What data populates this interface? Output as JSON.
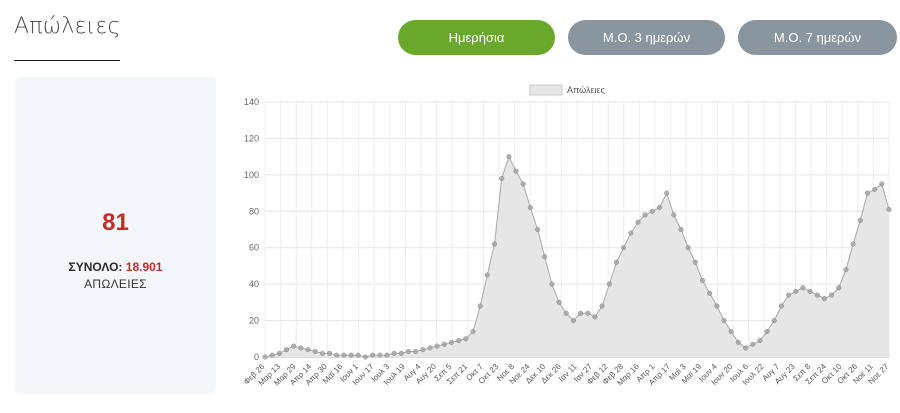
{
  "page": {
    "title": "Απώλειες"
  },
  "tabs": [
    {
      "label": "Ημερήσια",
      "active": true
    },
    {
      "label": "Μ.Ο. 3 ημερών",
      "active": false
    },
    {
      "label": "Μ.Ο. 7 ημερών",
      "active": false
    }
  ],
  "summary": {
    "daily_value": "81",
    "total_label": "ΣΥΝΟΛΟ:",
    "total_value": "18.901",
    "subtitle": "ΑΠΩΛΕΙΕΣ"
  },
  "colors": {
    "active_tab": "#6aa82b",
    "inactive_tab": "#8a969f",
    "value_red": "#c62b26",
    "area_fill": "#e6e6e6",
    "series_points": "#9e9e9e"
  },
  "chart_data": {
    "type": "area",
    "legend": [
      "Απώλειες"
    ],
    "legend_position": "top",
    "ylim": [
      0,
      140
    ],
    "yticks": [
      0,
      20,
      40,
      60,
      80,
      100,
      120,
      140
    ],
    "grid": true,
    "x_ticks": [
      "Φεβ 26",
      "Μαρ 13",
      "Μαρ 29",
      "Απρ 14",
      "Απρ 30",
      "Μαϊ 16",
      "Ιουν 1",
      "Ιουν 17",
      "Ιουλ 3",
      "Ιουλ 19",
      "Αυγ 4",
      "Αυγ 20",
      "Σεπ 5",
      "Σεπ 21",
      "Οκτ 7",
      "Οκτ 23",
      "Νοε 8",
      "Νοε 24",
      "Δεκ 10",
      "Δεκ 26",
      "Ιαν 11",
      "Ιαν 27",
      "Φεβ 12",
      "Φεβ 28",
      "Μαρ 16",
      "Απρ 1",
      "Απρ 17",
      "Μαϊ 3",
      "Μαϊ 19",
      "Ιουν 4",
      "Ιουν 20",
      "Ιουλ 6",
      "Ιουλ 22",
      "Αυγ 7",
      "Αυγ 23",
      "Σεπ 8",
      "Σεπ 24",
      "Οκτ 10",
      "Οκτ 26",
      "Νοε 11",
      "Νοε 27"
    ],
    "series": [
      {
        "name": "Απώλειες",
        "step_days": 4,
        "values": [
          0,
          1,
          2,
          4,
          6,
          5,
          4,
          3,
          2,
          2,
          1,
          1,
          1,
          1,
          0,
          1,
          1,
          1,
          2,
          2,
          3,
          3,
          4,
          5,
          6,
          7,
          8,
          9,
          10,
          14,
          28,
          45,
          62,
          98,
          110,
          102,
          95,
          82,
          70,
          55,
          40,
          30,
          24,
          20,
          24,
          24,
          22,
          28,
          40,
          52,
          60,
          68,
          74,
          78,
          80,
          82,
          90,
          78,
          70,
          60,
          52,
          42,
          35,
          28,
          20,
          14,
          8,
          5,
          7,
          9,
          14,
          20,
          28,
          34,
          36,
          38,
          36,
          34,
          32,
          34,
          38,
          48,
          62,
          75,
          90,
          92,
          95,
          81
        ]
      }
    ]
  }
}
